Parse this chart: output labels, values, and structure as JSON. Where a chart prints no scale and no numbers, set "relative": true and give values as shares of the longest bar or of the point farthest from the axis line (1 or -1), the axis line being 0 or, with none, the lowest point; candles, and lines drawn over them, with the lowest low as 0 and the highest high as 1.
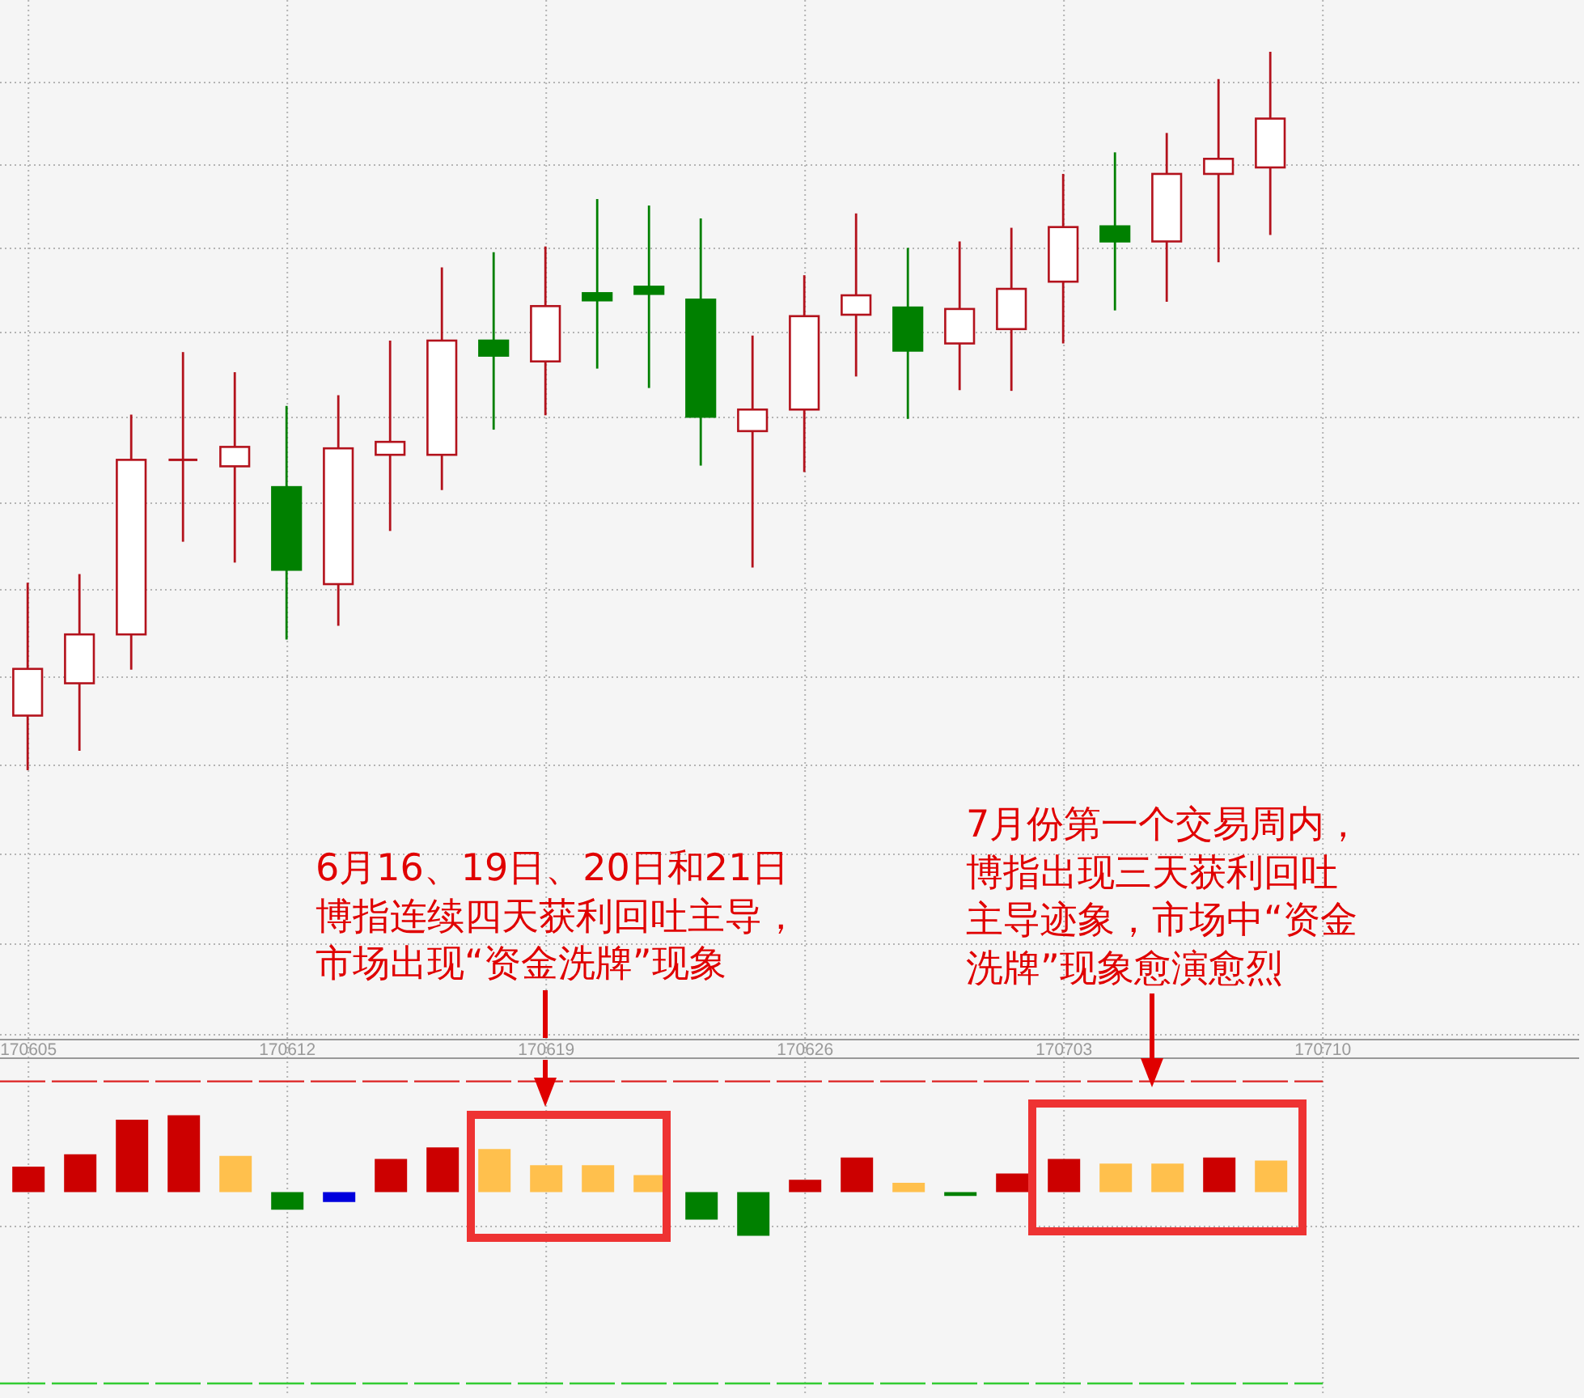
{
  "chart_data": [
    {
      "type": "candlestick",
      "categories": [
        "170605",
        null,
        null,
        null,
        null,
        "170612",
        null,
        null,
        null,
        null,
        "170619",
        null,
        null,
        null,
        null,
        "170626",
        null,
        null,
        null,
        null,
        "170703",
        null,
        null,
        null,
        null,
        "170710"
      ],
      "ohlc": [
        [
          0.076,
          0.261,
          0,
          0.141
        ],
        [
          0.121,
          0.273,
          0.027,
          0.189
        ],
        [
          0.189,
          0.495,
          0.14,
          0.432
        ],
        [
          0.432,
          0.582,
          0.318,
          0.432
        ],
        [
          0.423,
          0.554,
          0.289,
          0.45
        ],
        [
          0.394,
          0.507,
          0.182,
          0.279
        ],
        [
          0.259,
          0.522,
          0.201,
          0.448
        ],
        [
          0.439,
          0.598,
          0.333,
          0.457
        ],
        [
          0.439,
          0.7,
          0.39,
          0.598
        ],
        [
          0.598,
          0.721,
          0.474,
          0.577
        ],
        [
          0.569,
          0.729,
          0.494,
          0.646
        ],
        [
          0.664,
          0.795,
          0.559,
          0.654
        ],
        [
          0.673,
          0.786,
          0.532,
          0.663
        ],
        [
          0.655,
          0.768,
          0.424,
          0.492
        ],
        [
          0.472,
          0.605,
          0.282,
          0.502
        ],
        [
          0.502,
          0.689,
          0.415,
          0.632
        ],
        [
          0.634,
          0.775,
          0.548,
          0.661
        ],
        [
          0.644,
          0.727,
          0.489,
          0.584
        ],
        [
          0.594,
          0.736,
          0.529,
          0.642
        ],
        [
          0.614,
          0.755,
          0.528,
          0.67
        ],
        [
          0.68,
          0.83,
          0.594,
          0.756
        ],
        [
          0.757,
          0.86,
          0.64,
          0.736
        ],
        [
          0.736,
          0.887,
          0.652,
          0.83
        ],
        [
          0.83,
          0.962,
          0.707,
          0.851
        ],
        [
          0.839,
          1,
          0.745,
          0.907
        ],
        null
      ],
      "colors": [
        "#b3121c",
        "#b3121c",
        "#b3121c",
        "#b3121c",
        "#b3121c",
        "#008000",
        "#b3121c",
        "#b3121c",
        "#b3121c",
        "#008000",
        "#b3121c",
        "#008000",
        "#008000",
        "#008000",
        "#b3121c",
        "#b3121c",
        "#b3121c",
        "#008000",
        "#b3121c",
        "#b3121c",
        "#b3121c",
        "#008000",
        "#b3121c",
        "#b3121c",
        "#b3121c",
        null
      ],
      "relative": true,
      "grid": true,
      "tick_labels": false
    },
    {
      "type": "bar",
      "categories": [
        "170605",
        null,
        null,
        null,
        null,
        "170612",
        null,
        null,
        null,
        null,
        "170619",
        null,
        null,
        null,
        null,
        "170626",
        null,
        null,
        null,
        null,
        "170703",
        null,
        null,
        null,
        null,
        "170710"
      ],
      "values": [
        0.33,
        0.49,
        0.94,
        1,
        0.47,
        -0.23,
        -0.13,
        0.43,
        0.58,
        0.56,
        0.35,
        0.35,
        0.22,
        -0.36,
        -0.57,
        0.16,
        0.45,
        0.12,
        -0.05,
        0.24,
        0.43,
        0.37,
        0.37,
        0.45,
        0.41,
        null
      ],
      "colors": [
        "#cc0000",
        "#cc0000",
        "#cc0000",
        "#cc0000",
        "#ffc04d",
        "#008000",
        "#0000dd",
        "#cc0000",
        "#cc0000",
        "#ffc04d",
        "#ffc04d",
        "#ffc04d",
        "#ffc04d",
        "#008000",
        "#008000",
        "#cc0000",
        "#cc0000",
        "#ffc04d",
        "#008000",
        "#cc0000",
        "#cc0000",
        "#ffc04d",
        "#ffc04d",
        "#cc0000",
        "#ffc04d",
        null
      ],
      "relative": true,
      "grid": true,
      "tick_labels": "x",
      "ref_lines": [
        {
          "axis": "y",
          "value": 1.44,
          "color": "#dd2222",
          "line_style": "dashed"
        },
        {
          "axis": "y",
          "value": -2.49,
          "color": "#33cc33",
          "line_style": "dashed"
        }
      ],
      "annotations": [
        "6月16、19日、20日和21日博指连续四天获利回吐主导，市场出现“资金洗牌”现象",
        "7月份第一个交易周内，博指出现三天获利回吐主导迹象，市场中“资金洗牌”现象愈演愈烈"
      ]
    }
  ]
}
